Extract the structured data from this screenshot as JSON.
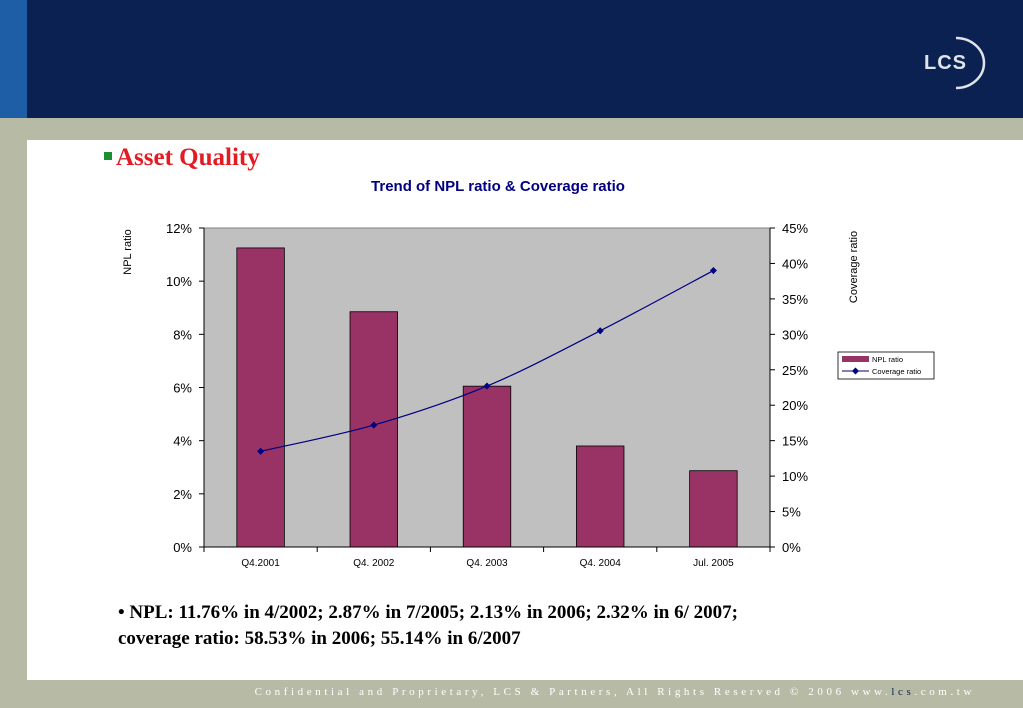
{
  "slide": {
    "logo_text": "LCS",
    "title": "Asset Quality",
    "footer_prefix": "Confidential and Proprietary, LCS & Partners, All Rights Reserved © 2006 www.",
    "footer_lcs": "lcs",
    "footer_suffix": ".com.tw",
    "note": "• NPL: 11.76%   in 4/2002; 2.87% in 7/2005; 2.13% in 2006; 2.32% in 6/ 2007; coverage ratio: 58.53% in 2006; 55.14% in 6/2007"
  },
  "colors": {
    "bar": "#993366",
    "line": "#000080",
    "plot_bg": "#c0c0c0",
    "title": "#000080",
    "header": "#0b2151",
    "accent": "#e31b23"
  },
  "chart_data": {
    "type": "bar",
    "title": "Trend of NPL ratio & Coverage ratio",
    "categories": [
      "Q4.2001",
      "Q4. 2002",
      "Q4. 2003",
      "Q4. 2004",
      "Jul. 2005"
    ],
    "ylabel": "NPL ratio",
    "y2label": "Coverage ratio",
    "ylim": [
      0,
      0.12
    ],
    "y2lim": [
      0,
      0.45
    ],
    "yticks": [
      "0%",
      "2%",
      "4%",
      "6%",
      "8%",
      "10%",
      "12%"
    ],
    "y2ticks": [
      "0%",
      "5%",
      "10%",
      "15%",
      "20%",
      "25%",
      "30%",
      "35%",
      "40%",
      "45%"
    ],
    "grid": false,
    "legend_position": "right",
    "series": [
      {
        "name": "NPL ratio",
        "type": "bar",
        "axis": "left",
        "values": [
          0.1125,
          0.0885,
          0.0605,
          0.038,
          0.0287
        ]
      },
      {
        "name": "Coverage ratio",
        "type": "line",
        "axis": "right",
        "values": [
          0.135,
          0.172,
          0.227,
          0.305,
          0.39
        ]
      }
    ]
  }
}
